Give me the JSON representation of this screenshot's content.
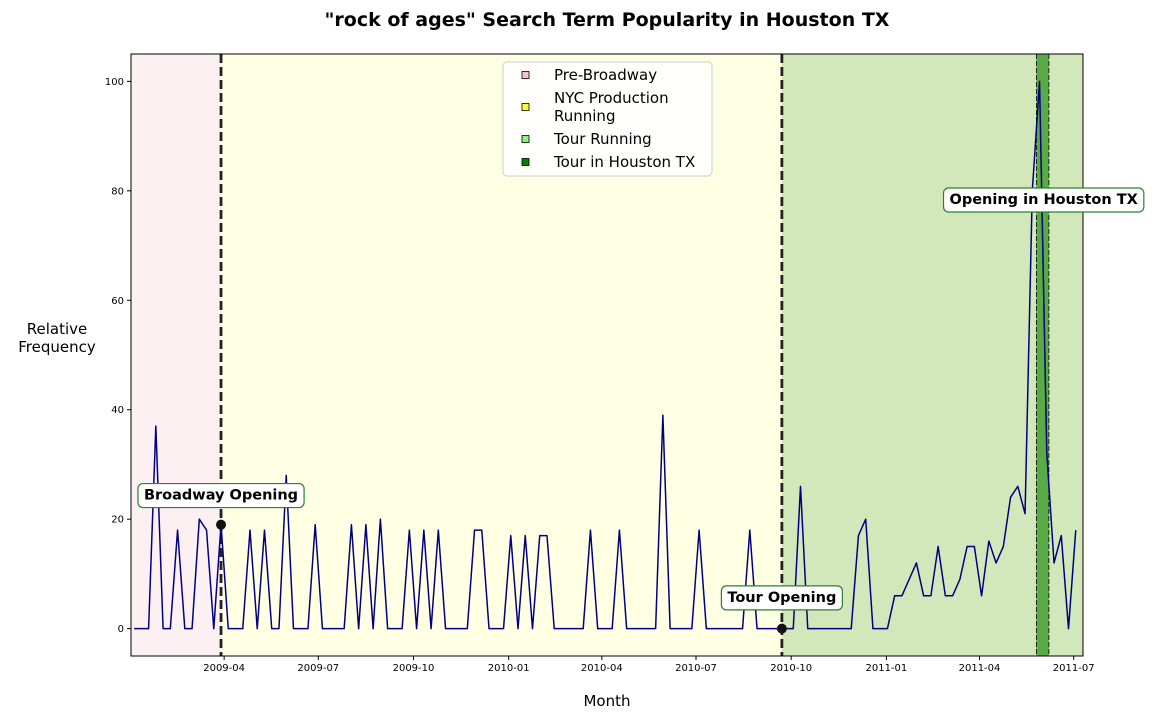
{
  "chart_data": {
    "type": "line",
    "title": "\"rock of ages\" Search Term Popularity in Houston TX",
    "xlabel": "Month",
    "ylabel": "Relative\nFrequency",
    "xlim": [
      "2009-01-01",
      "2011-07-10"
    ],
    "ylim": [
      -5,
      105
    ],
    "y_ticks": [
      0,
      20,
      40,
      60,
      80,
      100
    ],
    "x_ticks": [
      {
        "date": "2009-04-01",
        "label": "2009-04"
      },
      {
        "date": "2009-07-01",
        "label": "2009-07"
      },
      {
        "date": "2009-10-01",
        "label": "2009-10"
      },
      {
        "date": "2010-01-01",
        "label": "2010-01"
      },
      {
        "date": "2010-04-01",
        "label": "2010-04"
      },
      {
        "date": "2010-07-01",
        "label": "2010-07"
      },
      {
        "date": "2010-10-01",
        "label": "2010-10"
      },
      {
        "date": "2011-01-01",
        "label": "2011-01"
      },
      {
        "date": "2011-04-01",
        "label": "2011-04"
      },
      {
        "date": "2011-07-01",
        "label": "2011-07"
      }
    ],
    "grid": false,
    "line_color": "#000080",
    "series": [
      {
        "points": [
          [
            "2009-01-04",
            0
          ],
          [
            "2009-01-11",
            0
          ],
          [
            "2009-01-18",
            0
          ],
          [
            "2009-01-25",
            37
          ],
          [
            "2009-02-01",
            0
          ],
          [
            "2009-02-08",
            0
          ],
          [
            "2009-02-15",
            18
          ],
          [
            "2009-02-22",
            0
          ],
          [
            "2009-03-01",
            0
          ],
          [
            "2009-03-08",
            20
          ],
          [
            "2009-03-15",
            18
          ],
          [
            "2009-03-22",
            0
          ],
          [
            "2009-03-29",
            19
          ],
          [
            "2009-04-05",
            0
          ],
          [
            "2009-04-12",
            0
          ],
          [
            "2009-04-19",
            0
          ],
          [
            "2009-04-26",
            18
          ],
          [
            "2009-05-03",
            0
          ],
          [
            "2009-05-10",
            18
          ],
          [
            "2009-05-17",
            0
          ],
          [
            "2009-05-24",
            0
          ],
          [
            "2009-05-31",
            28
          ],
          [
            "2009-06-07",
            0
          ],
          [
            "2009-06-14",
            0
          ],
          [
            "2009-06-21",
            0
          ],
          [
            "2009-06-28",
            19
          ],
          [
            "2009-07-05",
            0
          ],
          [
            "2009-07-12",
            0
          ],
          [
            "2009-07-19",
            0
          ],
          [
            "2009-07-26",
            0
          ],
          [
            "2009-08-02",
            19
          ],
          [
            "2009-08-09",
            0
          ],
          [
            "2009-08-16",
            19
          ],
          [
            "2009-08-23",
            0
          ],
          [
            "2009-08-30",
            20
          ],
          [
            "2009-09-06",
            0
          ],
          [
            "2009-09-13",
            0
          ],
          [
            "2009-09-20",
            0
          ],
          [
            "2009-09-27",
            18
          ],
          [
            "2009-10-04",
            0
          ],
          [
            "2009-10-11",
            18
          ],
          [
            "2009-10-18",
            0
          ],
          [
            "2009-10-25",
            18
          ],
          [
            "2009-11-01",
            0
          ],
          [
            "2009-11-08",
            0
          ],
          [
            "2009-11-15",
            0
          ],
          [
            "2009-11-22",
            0
          ],
          [
            "2009-11-29",
            18
          ],
          [
            "2009-12-06",
            18
          ],
          [
            "2009-12-13",
            0
          ],
          [
            "2009-12-20",
            0
          ],
          [
            "2009-12-27",
            0
          ],
          [
            "2010-01-03",
            17
          ],
          [
            "2010-01-10",
            0
          ],
          [
            "2010-01-17",
            17
          ],
          [
            "2010-01-24",
            0
          ],
          [
            "2010-01-31",
            17
          ],
          [
            "2010-02-07",
            17
          ],
          [
            "2010-02-14",
            0
          ],
          [
            "2010-02-21",
            0
          ],
          [
            "2010-02-28",
            0
          ],
          [
            "2010-03-07",
            0
          ],
          [
            "2010-03-14",
            0
          ],
          [
            "2010-03-21",
            18
          ],
          [
            "2010-03-28",
            0
          ],
          [
            "2010-04-04",
            0
          ],
          [
            "2010-04-11",
            0
          ],
          [
            "2010-04-18",
            18
          ],
          [
            "2010-04-25",
            0
          ],
          [
            "2010-05-02",
            0
          ],
          [
            "2010-05-09",
            0
          ],
          [
            "2010-05-16",
            0
          ],
          [
            "2010-05-23",
            0
          ],
          [
            "2010-05-30",
            39
          ],
          [
            "2010-06-06",
            0
          ],
          [
            "2010-06-13",
            0
          ],
          [
            "2010-06-20",
            0
          ],
          [
            "2010-06-27",
            0
          ],
          [
            "2010-07-04",
            18
          ],
          [
            "2010-07-11",
            0
          ],
          [
            "2010-07-18",
            0
          ],
          [
            "2010-07-25",
            0
          ],
          [
            "2010-08-01",
            0
          ],
          [
            "2010-08-08",
            0
          ],
          [
            "2010-08-15",
            0
          ],
          [
            "2010-08-22",
            18
          ],
          [
            "2010-08-29",
            0
          ],
          [
            "2010-09-05",
            0
          ],
          [
            "2010-09-12",
            0
          ],
          [
            "2010-09-19",
            0
          ],
          [
            "2010-09-26",
            0
          ],
          [
            "2010-10-03",
            0
          ],
          [
            "2010-10-10",
            26
          ],
          [
            "2010-10-17",
            0
          ],
          [
            "2010-10-24",
            0
          ],
          [
            "2010-10-31",
            0
          ],
          [
            "2010-11-07",
            0
          ],
          [
            "2010-11-14",
            0
          ],
          [
            "2010-11-21",
            0
          ],
          [
            "2010-11-28",
            0
          ],
          [
            "2010-12-05",
            17
          ],
          [
            "2010-12-12",
            20
          ],
          [
            "2010-12-19",
            0
          ],
          [
            "2010-12-26",
            0
          ],
          [
            "2011-01-02",
            0
          ],
          [
            "2011-01-09",
            6
          ],
          [
            "2011-01-16",
            6
          ],
          [
            "2011-01-23",
            9
          ],
          [
            "2011-01-30",
            12
          ],
          [
            "2011-02-06",
            6
          ],
          [
            "2011-02-13",
            6
          ],
          [
            "2011-02-20",
            15
          ],
          [
            "2011-02-27",
            6
          ],
          [
            "2011-03-06",
            6
          ],
          [
            "2011-03-13",
            9
          ],
          [
            "2011-03-20",
            15
          ],
          [
            "2011-03-27",
            15
          ],
          [
            "2011-04-03",
            6
          ],
          [
            "2011-04-10",
            16
          ],
          [
            "2011-04-17",
            12
          ],
          [
            "2011-04-24",
            15
          ],
          [
            "2011-05-01",
            24
          ],
          [
            "2011-05-08",
            26
          ],
          [
            "2011-05-15",
            21
          ],
          [
            "2011-05-22",
            80
          ],
          [
            "2011-05-29",
            100
          ],
          [
            "2011-06-05",
            32
          ],
          [
            "2011-06-12",
            12
          ],
          [
            "2011-06-19",
            17
          ],
          [
            "2011-06-26",
            0
          ],
          [
            "2011-07-03",
            18
          ]
        ]
      }
    ],
    "shaded_regions": [
      {
        "start": "2009-01-01",
        "end": "2009-03-29",
        "color": "#fdf0f3"
      },
      {
        "start": "2009-03-29",
        "end": "2010-09-22",
        "color": "#ffffe4"
      },
      {
        "start": "2010-09-22",
        "end": "2011-07-10",
        "color": "#d3e8ba"
      },
      {
        "start": "2011-05-26",
        "end": "2011-06-07",
        "color": "#5aab46"
      }
    ],
    "vlines": [
      {
        "date": "2009-03-29",
        "style": "thick-dashed",
        "color": "#222222"
      },
      {
        "date": "2010-09-22",
        "style": "thick-dashed",
        "color": "#222222"
      },
      {
        "date": "2011-05-26",
        "style": "thin-dashed",
        "color": "#111111"
      },
      {
        "date": "2011-06-07",
        "style": "thin-dashed",
        "color": "#111111"
      }
    ],
    "markers": [
      {
        "date": "2009-03-29",
        "value": 19
      },
      {
        "date": "2010-09-22",
        "value": 0
      }
    ],
    "annotations": [
      {
        "text": "Broadway Opening",
        "date": "2009-03-29",
        "value": 24.5
      },
      {
        "text": "Tour Opening",
        "date": "2010-09-22",
        "value": 5.8
      },
      {
        "text": "Opening in Houston TX",
        "date": "2011-06-02",
        "value": 78.5
      }
    ],
    "legend": {
      "position": "upper-center",
      "entries": [
        {
          "label": "Pre-Broadway",
          "color": "#ffc0cb"
        },
        {
          "label": "NYC Production Running",
          "lines": [
            "NYC Production",
            "Running"
          ],
          "color": "#ffff33"
        },
        {
          "label": "Tour Running",
          "color": "#90ee90"
        },
        {
          "label": "Tour in Houston TX",
          "color": "#008000"
        }
      ]
    }
  }
}
